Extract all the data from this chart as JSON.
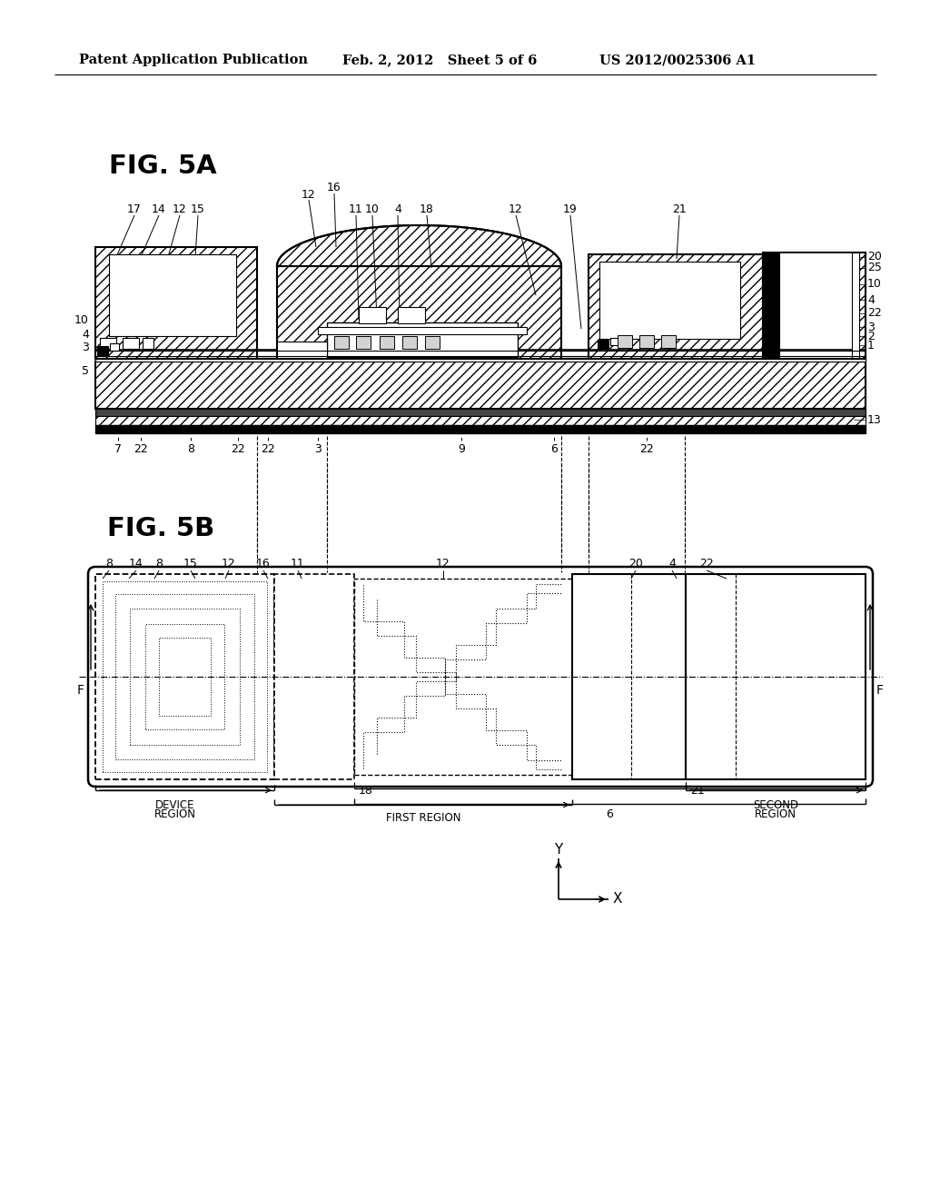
{
  "header_left": "Patent Application Publication",
  "header_mid": "Feb. 2, 2012   Sheet 5 of 6",
  "header_right": "US 2012/0025306 A1",
  "fig5a_label": "FIG. 5A",
  "fig5b_label": "FIG. 5B",
  "bg_color": "#ffffff"
}
